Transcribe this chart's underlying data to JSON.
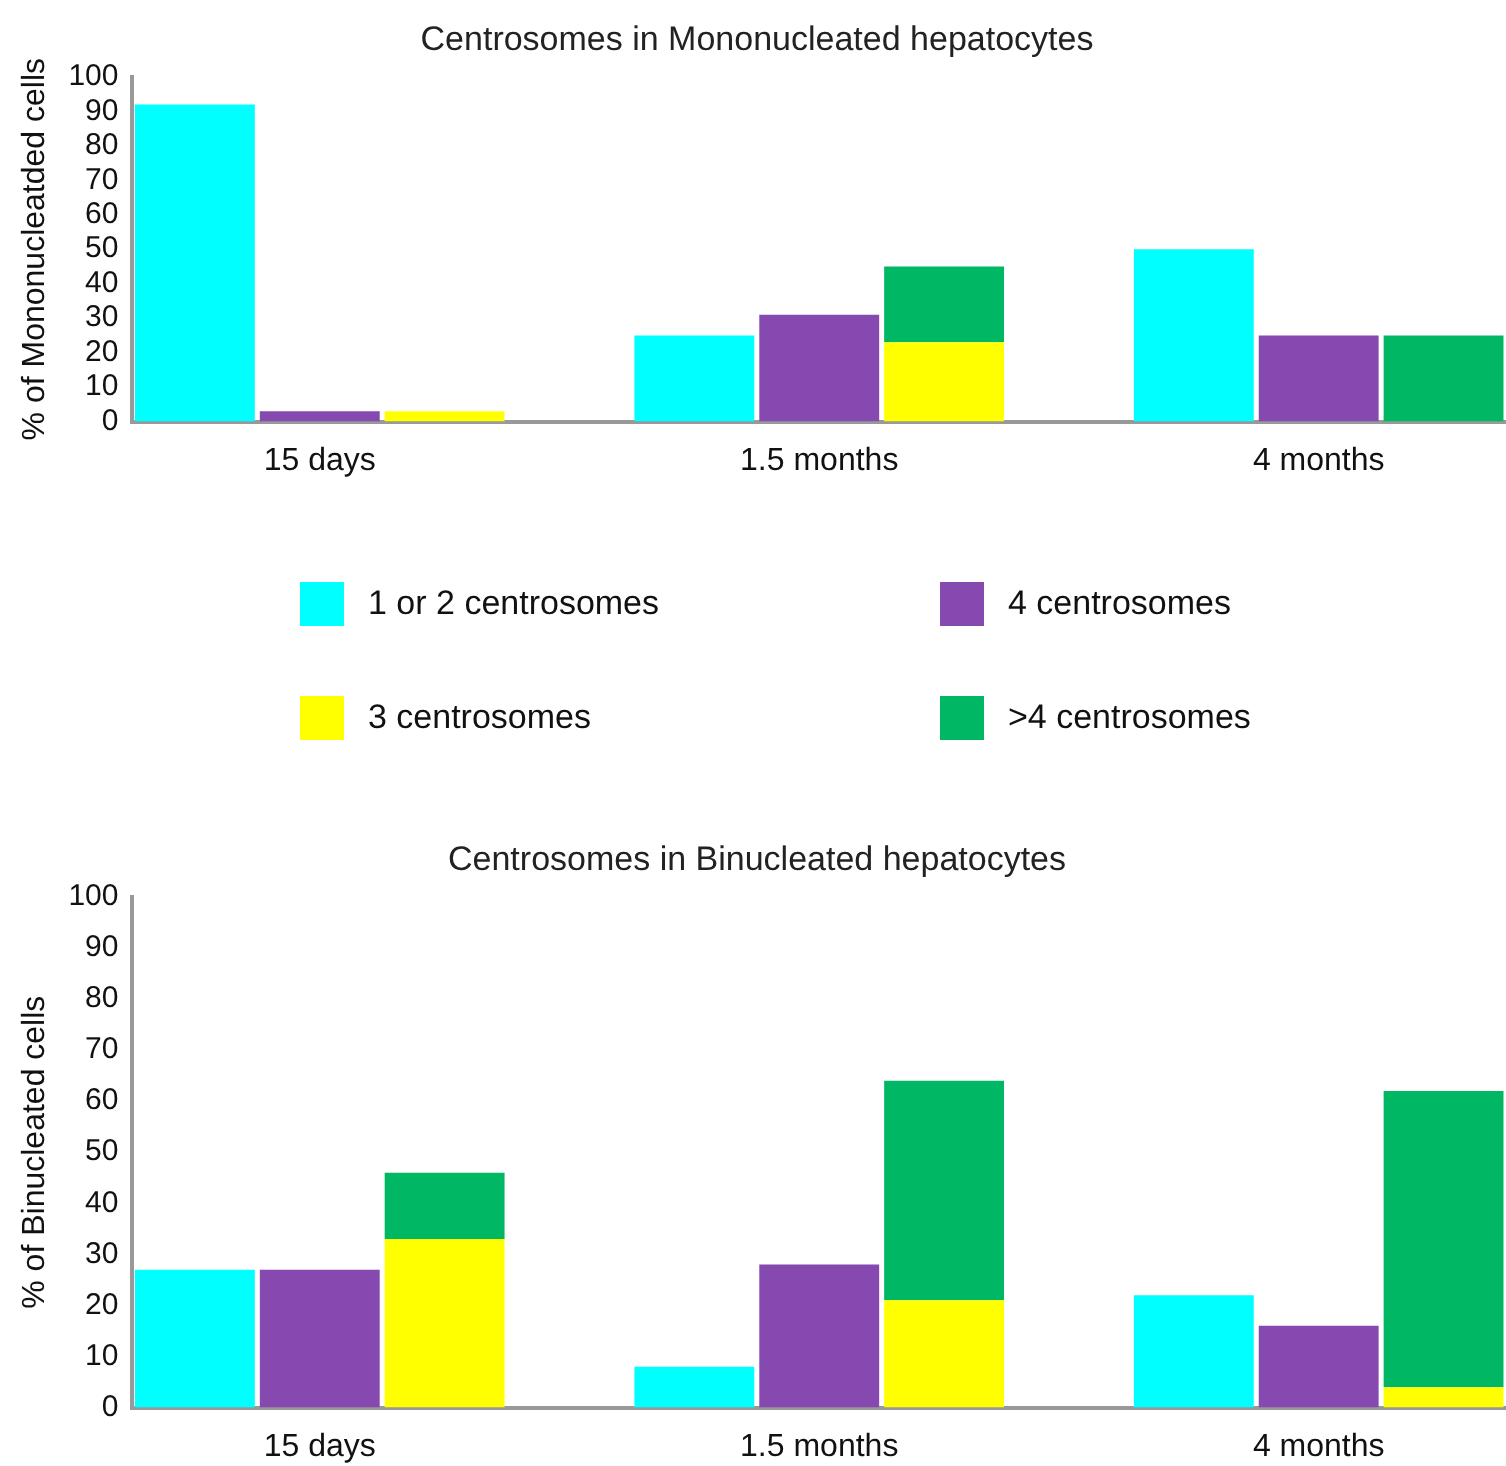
{
  "chart_data": [
    {
      "type": "bar",
      "title": "Centrosomes in Mononucleated hepatocytes",
      "ylabel": "% of Mononucleatded cells",
      "stacked": true,
      "legend": "bottom",
      "grid": false,
      "categories": [
        null,
        "15 days",
        null,
        null,
        null,
        "1.5 months",
        null,
        null,
        null,
        "4 months",
        null
      ],
      "ylim": [
        0,
        100
      ],
      "yticks": [
        0,
        10,
        20,
        30,
        40,
        50,
        60,
        70,
        80,
        90,
        100
      ],
      "series": [
        {
          "name": "1 or 2 centrosomes",
          "color": "#00ffff",
          "values": [
            92,
            null,
            null,
            null,
            25,
            null,
            null,
            null,
            50,
            null,
            null
          ]
        },
        {
          "name": "4 centrosomes",
          "color": "#8549b0",
          "values": [
            null,
            3,
            null,
            null,
            null,
            31,
            null,
            null,
            null,
            25,
            null
          ]
        },
        {
          "name": "3 centrosomes",
          "color": "#ffff00",
          "values": [
            null,
            null,
            3,
            null,
            null,
            null,
            23,
            null,
            null,
            null,
            null
          ]
        },
        {
          "name": ">4 centrosomes",
          "color": "#00b764",
          "values": [
            null,
            null,
            null,
            null,
            null,
            null,
            22,
            null,
            null,
            null,
            25
          ]
        }
      ]
    },
    {
      "type": "bar",
      "title": "Centrosomes in Binucleated hepatocytes",
      "ylabel": "% of Binucleated cells",
      "stacked": true,
      "grid": false,
      "categories": [
        null,
        "15 days",
        null,
        null,
        null,
        "1.5 months",
        null,
        null,
        null,
        "4 months",
        null
      ],
      "ylim": [
        0,
        100
      ],
      "yticks": [
        0,
        10,
        20,
        30,
        40,
        50,
        60,
        70,
        80,
        90,
        100
      ],
      "series": [
        {
          "color": "#00ffff",
          "values": [
            27,
            null,
            null,
            null,
            8,
            null,
            null,
            null,
            22,
            null,
            null
          ]
        },
        {
          "color": "#8549b0",
          "values": [
            null,
            27,
            null,
            null,
            null,
            28,
            null,
            null,
            null,
            16,
            null
          ]
        },
        {
          "color": "#ffff00",
          "values": [
            null,
            null,
            33,
            null,
            null,
            null,
            21,
            null,
            null,
            null,
            4
          ]
        },
        {
          "color": "#00b764",
          "values": [
            null,
            null,
            13,
            null,
            null,
            null,
            43,
            null,
            null,
            null,
            58
          ]
        }
      ]
    }
  ]
}
